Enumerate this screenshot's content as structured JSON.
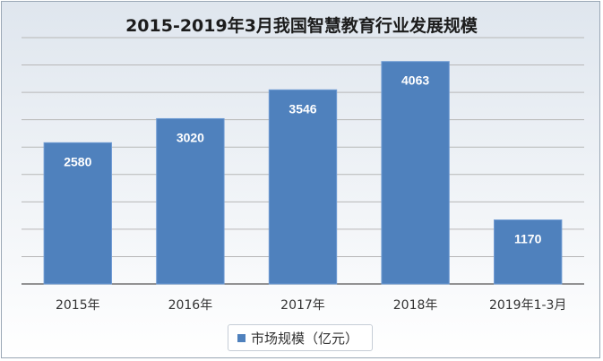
{
  "chart_data": {
    "type": "bar",
    "title": "2015-2019年3月我国智慧教育行业发展规模",
    "categories": [
      "2015年",
      "2016年",
      "2017年",
      "2018年",
      "2019年1-3月"
    ],
    "series": [
      {
        "name": "市场规模（亿元）",
        "values": [
          2580,
          3020,
          3546,
          4063,
          1170
        ],
        "color": "#4f81bd"
      }
    ],
    "data_labels": [
      "2580",
      "3020",
      "3546",
      "4063",
      "1170"
    ],
    "ylim": [
      0,
      4500
    ],
    "grid": true,
    "y_axis_visible": false,
    "legend_position": "bottom",
    "colors": {
      "bar": "#4f81bd",
      "bar_edge": "#6f9bd3",
      "label_text": "#ffffff",
      "gridline": "#b7b7b7",
      "axis": "#555555"
    }
  }
}
